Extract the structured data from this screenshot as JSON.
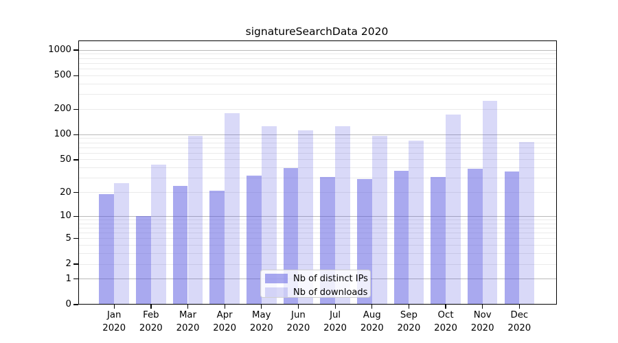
{
  "chart_data": {
    "type": "bar",
    "title": "signatureSearchData 2020",
    "xlabel": "",
    "ylabel": "",
    "scale": "symlog (position proportional to ln(1+value))",
    "ylim": [
      0,
      1300
    ],
    "grid": true,
    "legend_position": "lower center inside plot",
    "categories": [
      "Jan",
      "Feb",
      "Mar",
      "Apr",
      "May",
      "Jun",
      "Jul",
      "Aug",
      "Sep",
      "Oct",
      "Nov",
      "Dec"
    ],
    "year_label": "2020",
    "yticks": [
      0,
      1,
      2,
      5,
      10,
      20,
      50,
      100,
      200,
      500,
      1000
    ],
    "series": [
      {
        "name": "Nb of distinct IPs",
        "color": "rgba(84,84,223,0.5)",
        "values": [
          19,
          10,
          24,
          21,
          32,
          40,
          31,
          29,
          37,
          31,
          39,
          36
        ]
      },
      {
        "name": "Nb of downloads",
        "color": "rgba(84,84,223,0.22)",
        "values": [
          26,
          44,
          97,
          180,
          127,
          112,
          127,
          97,
          85,
          172,
          250,
          81
        ]
      }
    ],
    "colors": {
      "minor_grid": "#eaeaea",
      "major_grid": "#b9b9b9",
      "frame": "#000000",
      "background": "#ffffff"
    }
  }
}
